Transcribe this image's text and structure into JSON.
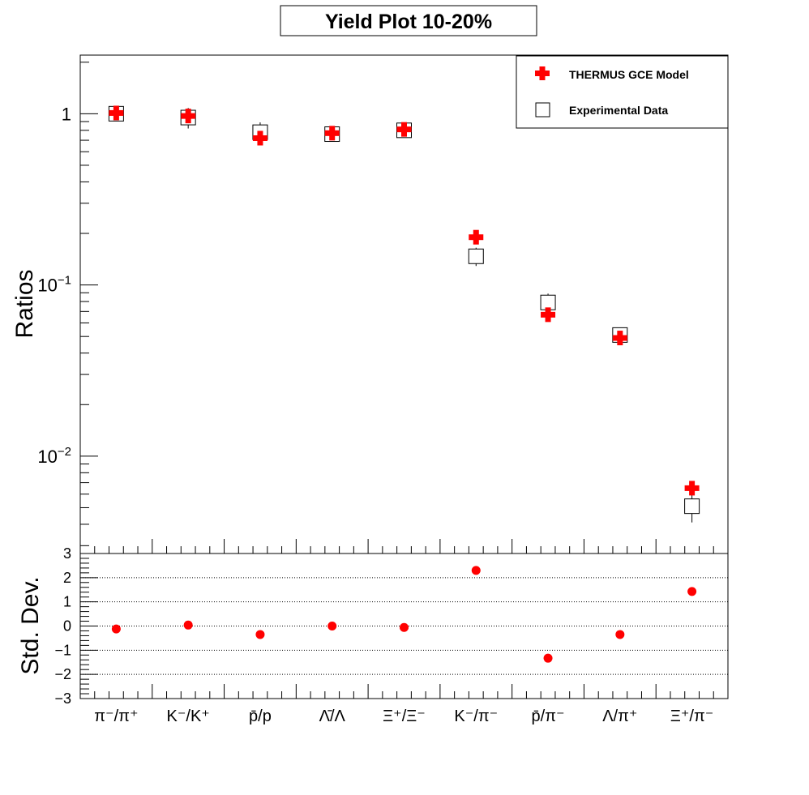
{
  "chart_data": {
    "title": "Yield Plot 10-20%",
    "type": "scatter",
    "categories": [
      "π⁻/π⁺",
      "K⁻/K⁺",
      "p̄/p",
      "Λ̄/Λ",
      "Ξ⁺/Ξ⁻",
      "K⁻/π⁻",
      "p̄/π⁻",
      "Λ/π⁺",
      "Ξ⁺/π⁻"
    ],
    "top_panel": {
      "ylabel": "Ratios",
      "yscale": "log",
      "ylim": [
        0.0027,
        2.2
      ],
      "yticks": [
        {
          "value": 1,
          "label": "1"
        },
        {
          "value": 0.1,
          "label": "10",
          "exp": "−1"
        },
        {
          "value": 0.01,
          "label": "10",
          "exp": "−2"
        }
      ],
      "series": [
        {
          "name": "THERMUS GCE Model",
          "marker": "cross",
          "color": "#ff0000",
          "values": [
            1.01,
            0.97,
            0.72,
            0.77,
            0.81,
            0.19,
            0.067,
            0.049,
            0.0065
          ]
        },
        {
          "name": "Experimental Data",
          "marker": "open-square",
          "color": "#000000",
          "values": [
            1.0,
            0.95,
            0.78,
            0.76,
            0.8,
            0.147,
            0.079,
            0.051,
            0.0051
          ],
          "errors": [
            0.04,
            0.13,
            0.11,
            0.04,
            0.04,
            0.018,
            0.01,
            0.004,
            0.001
          ]
        }
      ]
    },
    "bottom_panel": {
      "ylabel": "Std. Dev.",
      "ylim": [
        -3,
        3
      ],
      "yticks": [
        3,
        2,
        1,
        0,
        -1,
        -2,
        -3
      ],
      "ytick_labels": [
        "3",
        "2",
        "1",
        "0",
        "−1",
        "−2",
        "−3"
      ],
      "gridlines": [
        -2,
        -1,
        0,
        1,
        2
      ],
      "series": [
        {
          "name": "Std. Dev.",
          "marker": "filled-circle",
          "color": "#ff0000",
          "values": [
            -0.12,
            0.04,
            -0.35,
            0.0,
            -0.06,
            2.3,
            -1.33,
            -0.35,
            1.43
          ]
        }
      ]
    },
    "legend": {
      "position": "top-right",
      "entries": [
        "THERMUS GCE Model",
        "Experimental Data"
      ]
    }
  }
}
